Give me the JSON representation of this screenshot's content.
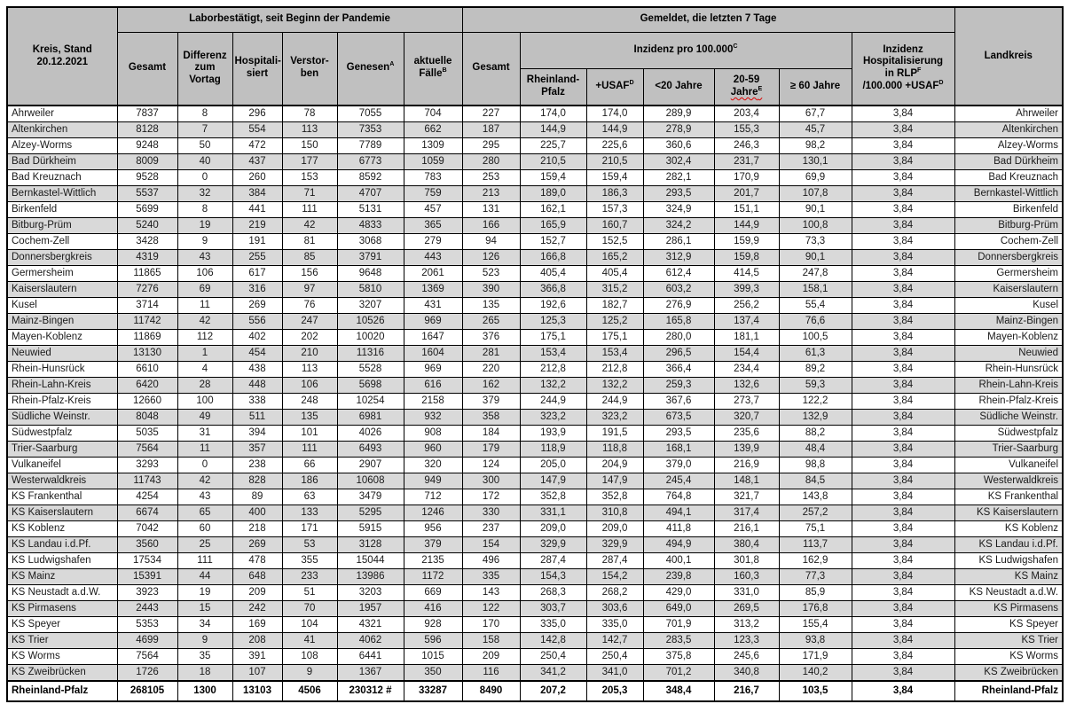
{
  "document_title": "Kreis, Stand 20.12.2021",
  "stand_date": "20.12.2021",
  "colors": {
    "header_bg": "#c0c0c0",
    "stripe_bg": "#d9d9d9",
    "border": "#000000",
    "spellcheck_squiggle": "#dd0000"
  },
  "header": {
    "kreis": {
      "segs": [
        {
          "t": "Kreis, Stand\n20.12.2021"
        }
      ]
    },
    "labor_group": {
      "segs": [
        {
          "t": "Laborbestätigt, seit Beginn der Pandemie"
        }
      ]
    },
    "gemeldet_group": {
      "segs": [
        {
          "t": "Gemeldet, die letzten 7 Tage"
        }
      ]
    },
    "landkreis": {
      "segs": [
        {
          "t": "Landkreis"
        }
      ]
    },
    "labor_cols": [
      {
        "name": "gesamt",
        "segs": [
          {
            "t": "Gesamt"
          }
        ]
      },
      {
        "name": "differenz-zum-vortag",
        "segs": [
          {
            "t": "Differenz\nzum\nVortag"
          }
        ]
      },
      {
        "name": "hospitalisiert",
        "segs": [
          {
            "t": "Hospitali-\nsiert"
          }
        ]
      },
      {
        "name": "verstorben",
        "segs": [
          {
            "t": "Verstor-\nben"
          }
        ]
      },
      {
        "name": "genesen",
        "segs": [
          {
            "t": "Genesen"
          },
          {
            "sup": "A"
          }
        ]
      },
      {
        "name": "aktuelle-faelle",
        "segs": [
          {
            "t": "aktuelle\nFälle"
          },
          {
            "sup": "B"
          }
        ]
      }
    ],
    "gemeldet_gesamt": {
      "name": "gesamt-7-tage",
      "segs": [
        {
          "t": "Gesamt"
        }
      ]
    },
    "inzidenz_group": {
      "segs": [
        {
          "t": "Inzidenz pro 100.000"
        },
        {
          "sup": "C"
        }
      ]
    },
    "inzidenz_cols": [
      {
        "name": "inzidenz-rlp",
        "segs": [
          {
            "t": "Rheinland-\nPfalz"
          }
        ]
      },
      {
        "name": "inzidenz-usaf",
        "segs": [
          {
            "t": "+USAF"
          },
          {
            "sup": "D"
          }
        ]
      },
      {
        "name": "inzidenz-unter-20",
        "segs": [
          {
            "t": "<20 Jahre"
          }
        ]
      },
      {
        "name": "inzidenz-20-59",
        "segs": [
          {
            "t": "20-59 "
          },
          {
            "wavy": [
              {
                "t": "Jahre"
              },
              {
                "sup": "E"
              }
            ]
          }
        ]
      },
      {
        "name": "inzidenz-60-plus",
        "segs": [
          {
            "t": "≥ 60 Jahre"
          }
        ]
      }
    ],
    "hosp_col": {
      "name": "inzidenz-hospitalisierung",
      "segs": [
        {
          "t": "Inzidenz\nHospitalisierung\nin RLP"
        },
        {
          "sup": "F"
        },
        {
          "t": "\n/100.000 +USAF"
        },
        {
          "sup": "D"
        }
      ]
    }
  },
  "column_keys": [
    "gesamt",
    "differenz-zum-vortag",
    "hospitalisiert",
    "verstorben",
    "genesen",
    "aktuelle-faelle",
    "gesamt-7-tage",
    "inzidenz-rlp",
    "inzidenz-usaf",
    "inzidenz-unter-20",
    "inzidenz-20-59",
    "inzidenz-60-plus",
    "inzidenz-hospitalisierung"
  ],
  "rows": [
    {
      "kreis": "Ahrweiler",
      "values": [
        "7837",
        "8",
        "296",
        "78",
        "7055",
        "704",
        "227",
        "174,0",
        "174,0",
        "289,9",
        "203,4",
        "67,7",
        "3,84"
      ]
    },
    {
      "kreis": "Altenkirchen",
      "values": [
        "8128",
        "7",
        "554",
        "113",
        "7353",
        "662",
        "187",
        "144,9",
        "144,9",
        "278,9",
        "155,3",
        "45,7",
        "3,84"
      ]
    },
    {
      "kreis": "Alzey-Worms",
      "values": [
        "9248",
        "50",
        "472",
        "150",
        "7789",
        "1309",
        "295",
        "225,7",
        "225,6",
        "360,6",
        "246,3",
        "98,2",
        "3,84"
      ]
    },
    {
      "kreis": "Bad Dürkheim",
      "values": [
        "8009",
        "40",
        "437",
        "177",
        "6773",
        "1059",
        "280",
        "210,5",
        "210,5",
        "302,4",
        "231,7",
        "130,1",
        "3,84"
      ]
    },
    {
      "kreis": "Bad Kreuznach",
      "values": [
        "9528",
        "0",
        "260",
        "153",
        "8592",
        "783",
        "253",
        "159,4",
        "159,4",
        "282,1",
        "170,9",
        "69,9",
        "3,84"
      ]
    },
    {
      "kreis": "Bernkastel-Wittlich",
      "values": [
        "5537",
        "32",
        "384",
        "71",
        "4707",
        "759",
        "213",
        "189,0",
        "186,3",
        "293,5",
        "201,7",
        "107,8",
        "3,84"
      ]
    },
    {
      "kreis": "Birkenfeld",
      "values": [
        "5699",
        "8",
        "441",
        "111",
        "5131",
        "457",
        "131",
        "162,1",
        "157,3",
        "324,9",
        "151,1",
        "90,1",
        "3,84"
      ]
    },
    {
      "kreis": "Bitburg-Prüm",
      "values": [
        "5240",
        "19",
        "219",
        "42",
        "4833",
        "365",
        "166",
        "165,9",
        "160,7",
        "324,2",
        "144,9",
        "100,8",
        "3,84"
      ]
    },
    {
      "kreis": "Cochem-Zell",
      "values": [
        "3428",
        "9",
        "191",
        "81",
        "3068",
        "279",
        "94",
        "152,7",
        "152,5",
        "286,1",
        "159,9",
        "73,3",
        "3,84"
      ]
    },
    {
      "kreis": "Donnersbergkreis",
      "values": [
        "4319",
        "43",
        "255",
        "85",
        "3791",
        "443",
        "126",
        "166,8",
        "165,2",
        "312,9",
        "159,8",
        "90,1",
        "3,84"
      ]
    },
    {
      "kreis": "Germersheim",
      "values": [
        "11865",
        "106",
        "617",
        "156",
        "9648",
        "2061",
        "523",
        "405,4",
        "405,4",
        "612,4",
        "414,5",
        "247,8",
        "3,84"
      ]
    },
    {
      "kreis": "Kaiserslautern",
      "values": [
        "7276",
        "69",
        "316",
        "97",
        "5810",
        "1369",
        "390",
        "366,8",
        "315,2",
        "603,2",
        "399,3",
        "158,1",
        "3,84"
      ]
    },
    {
      "kreis": "Kusel",
      "values": [
        "3714",
        "11",
        "269",
        "76",
        "3207",
        "431",
        "135",
        "192,6",
        "182,7",
        "276,9",
        "256,2",
        "55,4",
        "3,84"
      ]
    },
    {
      "kreis": "Mainz-Bingen",
      "values": [
        "11742",
        "42",
        "556",
        "247",
        "10526",
        "969",
        "265",
        "125,3",
        "125,2",
        "165,8",
        "137,4",
        "76,6",
        "3,84"
      ]
    },
    {
      "kreis": "Mayen-Koblenz",
      "values": [
        "11869",
        "112",
        "402",
        "202",
        "10020",
        "1647",
        "376",
        "175,1",
        "175,1",
        "280,0",
        "181,1",
        "100,5",
        "3,84"
      ]
    },
    {
      "kreis": "Neuwied",
      "values": [
        "13130",
        "1",
        "454",
        "210",
        "11316",
        "1604",
        "281",
        "153,4",
        "153,4",
        "296,5",
        "154,4",
        "61,3",
        "3,84"
      ]
    },
    {
      "kreis": "Rhein-Hunsrück",
      "values": [
        "6610",
        "4",
        "438",
        "113",
        "5528",
        "969",
        "220",
        "212,8",
        "212,8",
        "366,4",
        "234,4",
        "89,2",
        "3,84"
      ]
    },
    {
      "kreis": "Rhein-Lahn-Kreis",
      "values": [
        "6420",
        "28",
        "448",
        "106",
        "5698",
        "616",
        "162",
        "132,2",
        "132,2",
        "259,3",
        "132,6",
        "59,3",
        "3,84"
      ]
    },
    {
      "kreis": "Rhein-Pfalz-Kreis",
      "values": [
        "12660",
        "100",
        "338",
        "248",
        "10254",
        "2158",
        "379",
        "244,9",
        "244,9",
        "367,6",
        "273,7",
        "122,2",
        "3,84"
      ]
    },
    {
      "kreis": "Südliche Weinstr.",
      "values": [
        "8048",
        "49",
        "511",
        "135",
        "6981",
        "932",
        "358",
        "323,2",
        "323,2",
        "673,5",
        "320,7",
        "132,9",
        "3,84"
      ]
    },
    {
      "kreis": "Südwestpfalz",
      "values": [
        "5035",
        "31",
        "394",
        "101",
        "4026",
        "908",
        "184",
        "193,9",
        "191,5",
        "293,5",
        "235,6",
        "88,2",
        "3,84"
      ]
    },
    {
      "kreis": "Trier-Saarburg",
      "values": [
        "7564",
        "11",
        "357",
        "111",
        "6493",
        "960",
        "179",
        "118,9",
        "118,8",
        "168,1",
        "139,9",
        "48,4",
        "3,84"
      ]
    },
    {
      "kreis": "Vulkaneifel",
      "values": [
        "3293",
        "0",
        "238",
        "66",
        "2907",
        "320",
        "124",
        "205,0",
        "204,9",
        "379,0",
        "216,9",
        "98,8",
        "3,84"
      ]
    },
    {
      "kreis": "Westerwaldkreis",
      "values": [
        "11743",
        "42",
        "828",
        "186",
        "10608",
        "949",
        "300",
        "147,9",
        "147,9",
        "245,4",
        "148,1",
        "84,5",
        "3,84"
      ]
    },
    {
      "kreis": "KS Frankenthal",
      "values": [
        "4254",
        "43",
        "89",
        "63",
        "3479",
        "712",
        "172",
        "352,8",
        "352,8",
        "764,8",
        "321,7",
        "143,8",
        "3,84"
      ]
    },
    {
      "kreis": "KS Kaiserslautern",
      "values": [
        "6674",
        "65",
        "400",
        "133",
        "5295",
        "1246",
        "330",
        "331,1",
        "310,8",
        "494,1",
        "317,4",
        "257,2",
        "3,84"
      ]
    },
    {
      "kreis": "KS Koblenz",
      "values": [
        "7042",
        "60",
        "218",
        "171",
        "5915",
        "956",
        "237",
        "209,0",
        "209,0",
        "411,8",
        "216,1",
        "75,1",
        "3,84"
      ]
    },
    {
      "kreis": "KS Landau i.d.Pf.",
      "values": [
        "3560",
        "25",
        "269",
        "53",
        "3128",
        "379",
        "154",
        "329,9",
        "329,9",
        "494,9",
        "380,4",
        "113,7",
        "3,84"
      ]
    },
    {
      "kreis": "KS Ludwigshafen",
      "values": [
        "17534",
        "111",
        "478",
        "355",
        "15044",
        "2135",
        "496",
        "287,4",
        "287,4",
        "400,1",
        "301,8",
        "162,9",
        "3,84"
      ]
    },
    {
      "kreis": "KS Mainz",
      "values": [
        "15391",
        "44",
        "648",
        "233",
        "13986",
        "1172",
        "335",
        "154,3",
        "154,2",
        "239,8",
        "160,3",
        "77,3",
        "3,84"
      ]
    },
    {
      "kreis": "KS Neustadt a.d.W.",
      "values": [
        "3923",
        "19",
        "209",
        "51",
        "3203",
        "669",
        "143",
        "268,3",
        "268,2",
        "429,0",
        "331,0",
        "85,9",
        "3,84"
      ]
    },
    {
      "kreis": "KS Pirmasens",
      "values": [
        "2443",
        "15",
        "242",
        "70",
        "1957",
        "416",
        "122",
        "303,7",
        "303,6",
        "649,0",
        "269,5",
        "176,8",
        "3,84"
      ]
    },
    {
      "kreis": "KS Speyer",
      "values": [
        "5353",
        "34",
        "169",
        "104",
        "4321",
        "928",
        "170",
        "335,0",
        "335,0",
        "701,9",
        "313,2",
        "155,4",
        "3,84"
      ]
    },
    {
      "kreis": "KS Trier",
      "values": [
        "4699",
        "9",
        "208",
        "41",
        "4062",
        "596",
        "158",
        "142,8",
        "142,7",
        "283,5",
        "123,3",
        "93,8",
        "3,84"
      ]
    },
    {
      "kreis": "KS Worms",
      "values": [
        "7564",
        "35",
        "391",
        "108",
        "6441",
        "1015",
        "209",
        "250,4",
        "250,4",
        "375,8",
        "245,6",
        "171,9",
        "3,84"
      ]
    },
    {
      "kreis": "KS Zweibrücken",
      "values": [
        "1726",
        "18",
        "107",
        "9",
        "1367",
        "350",
        "116",
        "341,2",
        "341,0",
        "701,2",
        "340,8",
        "140,2",
        "3,84"
      ]
    }
  ],
  "total": {
    "kreis": "Rheinland-Pfalz",
    "values": [
      "268105",
      "1300",
      "13103",
      "4506",
      "230312 #",
      "33287",
      "8490",
      "207,2",
      "205,3",
      "348,4",
      "216,7",
      "103,5",
      "3,84"
    ]
  }
}
